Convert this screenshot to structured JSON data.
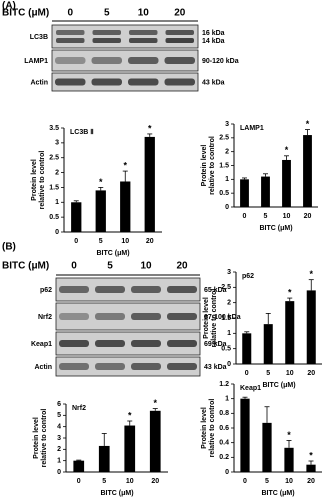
{
  "panels": [
    "(A)",
    "(B)"
  ],
  "blots": [
    {
      "treatment_label": "BITC (μM)",
      "doses": [
        "0",
        "5",
        "10",
        "20"
      ],
      "rows": [
        {
          "name": "LC3B",
          "sizes": [
            "16 kDa",
            "14 kDa"
          ]
        },
        {
          "name": "LAMP1",
          "sizes": [
            "90-120 kDa"
          ]
        },
        {
          "name": "Actin",
          "sizes": [
            "43 kDa"
          ]
        }
      ]
    },
    {
      "treatment_label": "BITC (μM)",
      "doses": [
        "0",
        "5",
        "10",
        "20"
      ],
      "rows": [
        {
          "name": "p62",
          "sizes": [
            "65 kDa"
          ]
        },
        {
          "name": "Nrf2",
          "sizes": [
            "97-100 kDa"
          ]
        },
        {
          "name": "Keap1",
          "sizes": [
            "69 kDa"
          ]
        },
        {
          "name": "Actin",
          "sizes": [
            "43 kDa"
          ]
        }
      ]
    }
  ],
  "chart_data": [
    {
      "type": "bar",
      "title": "LC3B Ⅱ",
      "xlabel": "BITC (μM)",
      "ylabel": [
        "Protein level",
        "relative to control"
      ],
      "categories": [
        "0",
        "5",
        "10",
        "20"
      ],
      "values": [
        1.0,
        1.4,
        1.7,
        3.2
      ],
      "errors": [
        0.05,
        0.1,
        0.35,
        0.1
      ],
      "annotations": [
        null,
        "*",
        "*",
        "*"
      ],
      "color": "#000000",
      "ylim": [
        0,
        3.5
      ],
      "yticks": [
        0,
        0.5,
        1,
        1.5,
        2,
        2.5,
        3,
        3.5
      ]
    },
    {
      "type": "bar",
      "title": "LAMP1",
      "xlabel": "BITC (μM)",
      "ylabel": [
        "Protein level",
        "relative to control"
      ],
      "categories": [
        "0",
        "5",
        "10",
        "20"
      ],
      "values": [
        1.0,
        1.1,
        1.7,
        2.6
      ],
      "errors": [
        0.05,
        0.1,
        0.15,
        0.2
      ],
      "annotations": [
        null,
        null,
        "*",
        "*"
      ],
      "color": "#000000",
      "ylim": [
        0,
        3
      ],
      "yticks": [
        0,
        0.5,
        1,
        1.5,
        2,
        2.5,
        3
      ]
    },
    {
      "type": "bar",
      "title": "p62",
      "xlabel": "BITC (μM)",
      "ylabel": [
        "Protein level",
        "relative to control"
      ],
      "categories": [
        "0",
        "5",
        "10",
        "20"
      ],
      "values": [
        1.0,
        1.3,
        2.05,
        2.4
      ],
      "errors": [
        0.05,
        0.35,
        0.1,
        0.35
      ],
      "annotations": [
        null,
        null,
        "*",
        "*"
      ],
      "color": "#000000",
      "ylim": [
        0,
        3
      ],
      "yticks": [
        0,
        0.5,
        1,
        1.5,
        2,
        2.5,
        3
      ]
    },
    {
      "type": "bar",
      "title": "Nrf2",
      "xlabel": "BITC (μM)",
      "ylabel": [
        "Protein level",
        "relative to control"
      ],
      "categories": [
        "0",
        "5",
        "10",
        "20"
      ],
      "values": [
        1.0,
        2.3,
        4.1,
        5.4
      ],
      "errors": [
        0.05,
        1.1,
        0.4,
        0.2
      ],
      "annotations": [
        null,
        null,
        "*",
        "*"
      ],
      "color": "#000000",
      "ylim": [
        0,
        6
      ],
      "yticks": [
        0,
        1,
        2,
        3,
        4,
        5,
        6
      ]
    },
    {
      "type": "bar",
      "title": "Keap1",
      "xlabel": "BITC (μM)",
      "ylabel": [
        "Protein level",
        "relative to control"
      ],
      "categories": [
        "0",
        "5",
        "10",
        "20"
      ],
      "values": [
        1.0,
        0.67,
        0.33,
        0.1
      ],
      "errors": [
        0.02,
        0.22,
        0.1,
        0.05
      ],
      "annotations": [
        null,
        null,
        "*",
        "*"
      ],
      "color": "#000000",
      "ylim": [
        0,
        1.2
      ],
      "yticks": [
        0,
        0.2,
        0.4,
        0.6,
        0.8,
        1,
        1.2
      ]
    }
  ]
}
